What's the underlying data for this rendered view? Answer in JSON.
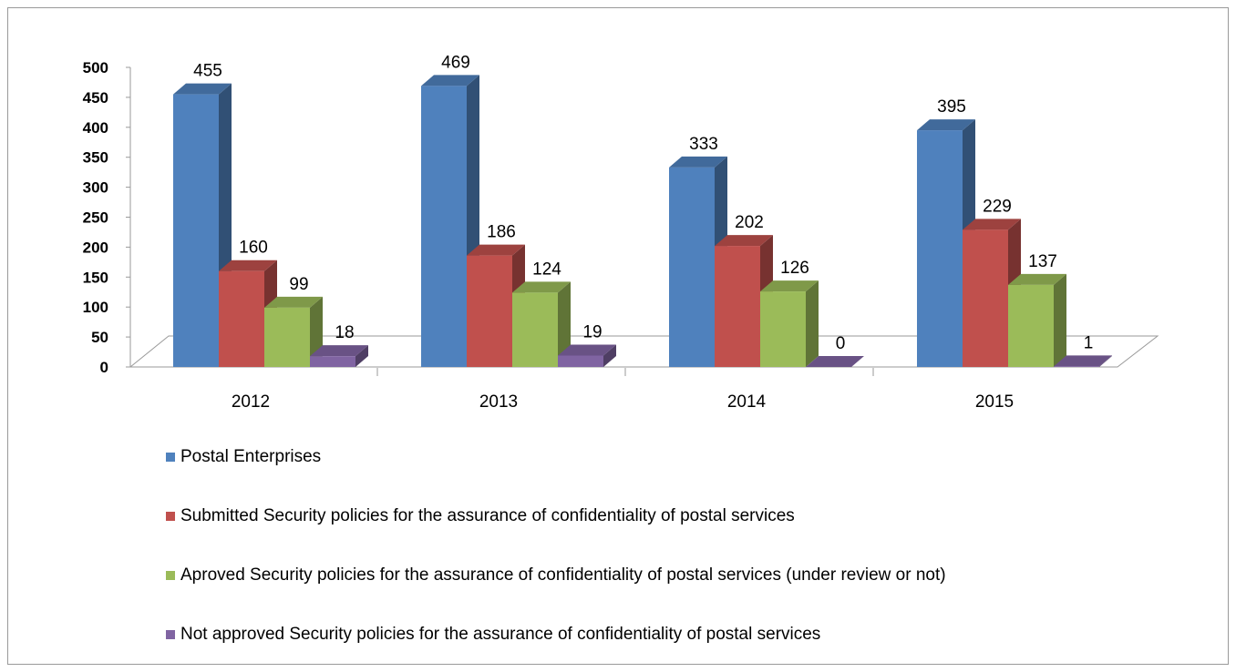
{
  "chart_data": {
    "type": "bar",
    "title": "",
    "xlabel": "",
    "ylabel": "",
    "categories": [
      "2012",
      "2013",
      "2014",
      "2015"
    ],
    "ylim": [
      0,
      500
    ],
    "yticks": [
      "0",
      "50",
      "100",
      "150",
      "200",
      "250",
      "300",
      "350",
      "400",
      "450",
      "500"
    ],
    "grid": false,
    "legend_position": "bottom",
    "series": [
      {
        "name": "Postal Enterprises",
        "values": [
          455,
          469,
          333,
          395
        ],
        "color": "#4F81BD"
      },
      {
        "name": "Submitted Security policies for the assurance of confidentiality of postal services",
        "values": [
          160,
          186,
          202,
          229
        ],
        "color": "#C0504D"
      },
      {
        "name": "Aproved Security policies for the assurance of confidentiality of postal services (under review  or not)",
        "values": [
          99,
          124,
          126,
          137
        ],
        "color": "#9BBB59"
      },
      {
        "name": "Not approved Security policies for the assurance of confidentiality of postal services",
        "values": [
          18,
          19,
          0,
          1
        ],
        "color": "#8064A2"
      }
    ]
  }
}
